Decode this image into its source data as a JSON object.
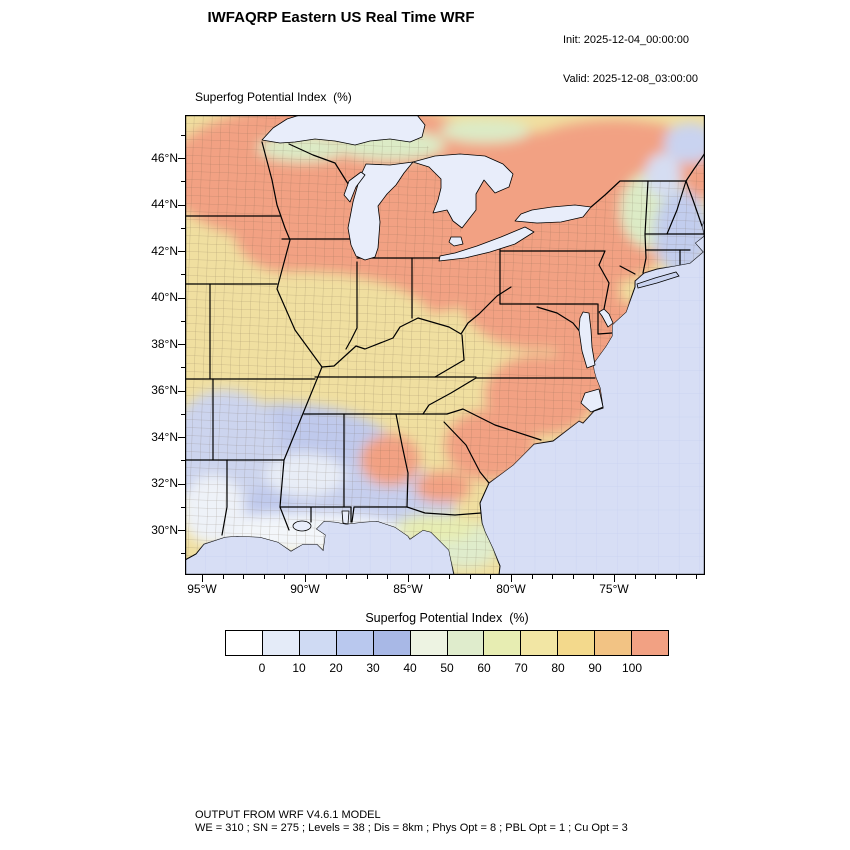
{
  "header": {
    "title": "IWFAQRP Eastern US Real Time WRF",
    "init": "Init: 2025-12-04_00:00:00",
    "valid": "Valid: 2025-12-08_03:00:00"
  },
  "map": {
    "field_label": "Superfog Potential Index  (%)",
    "ocean_color": "#d7def5",
    "axes": {
      "lat_labels": [
        "46°N",
        "44°N",
        "42°N",
        "40°N",
        "38°N",
        "36°N",
        "34°N",
        "32°N",
        "30°N"
      ],
      "lon_labels": [
        "95°W",
        "90°W",
        "85°W",
        "80°W",
        "75°W"
      ]
    }
  },
  "colorbar": {
    "title": "Superfog Potential Index  (%)",
    "ticks": [
      "0",
      "10",
      "20",
      "30",
      "40",
      "50",
      "60",
      "70",
      "80",
      "90",
      "100"
    ],
    "colors": [
      "#ffffff",
      "#e4ebf8",
      "#cfdaf3",
      "#b9c8ee",
      "#a8b8e6",
      "#edf3e2",
      "#dfeccc",
      "#e7edb2",
      "#f2e6a4",
      "#f3d98c",
      "#f2c384",
      "#f2a183"
    ]
  },
  "footer": {
    "line1": "OUTPUT FROM WRF V4.6.1 MODEL",
    "line2": "WE = 310 ; SN = 275 ; Levels = 38 ; Dis = 8km ; Phys Opt = 8 ; PBL Opt = 1 ; Cu Opt = 3"
  }
}
